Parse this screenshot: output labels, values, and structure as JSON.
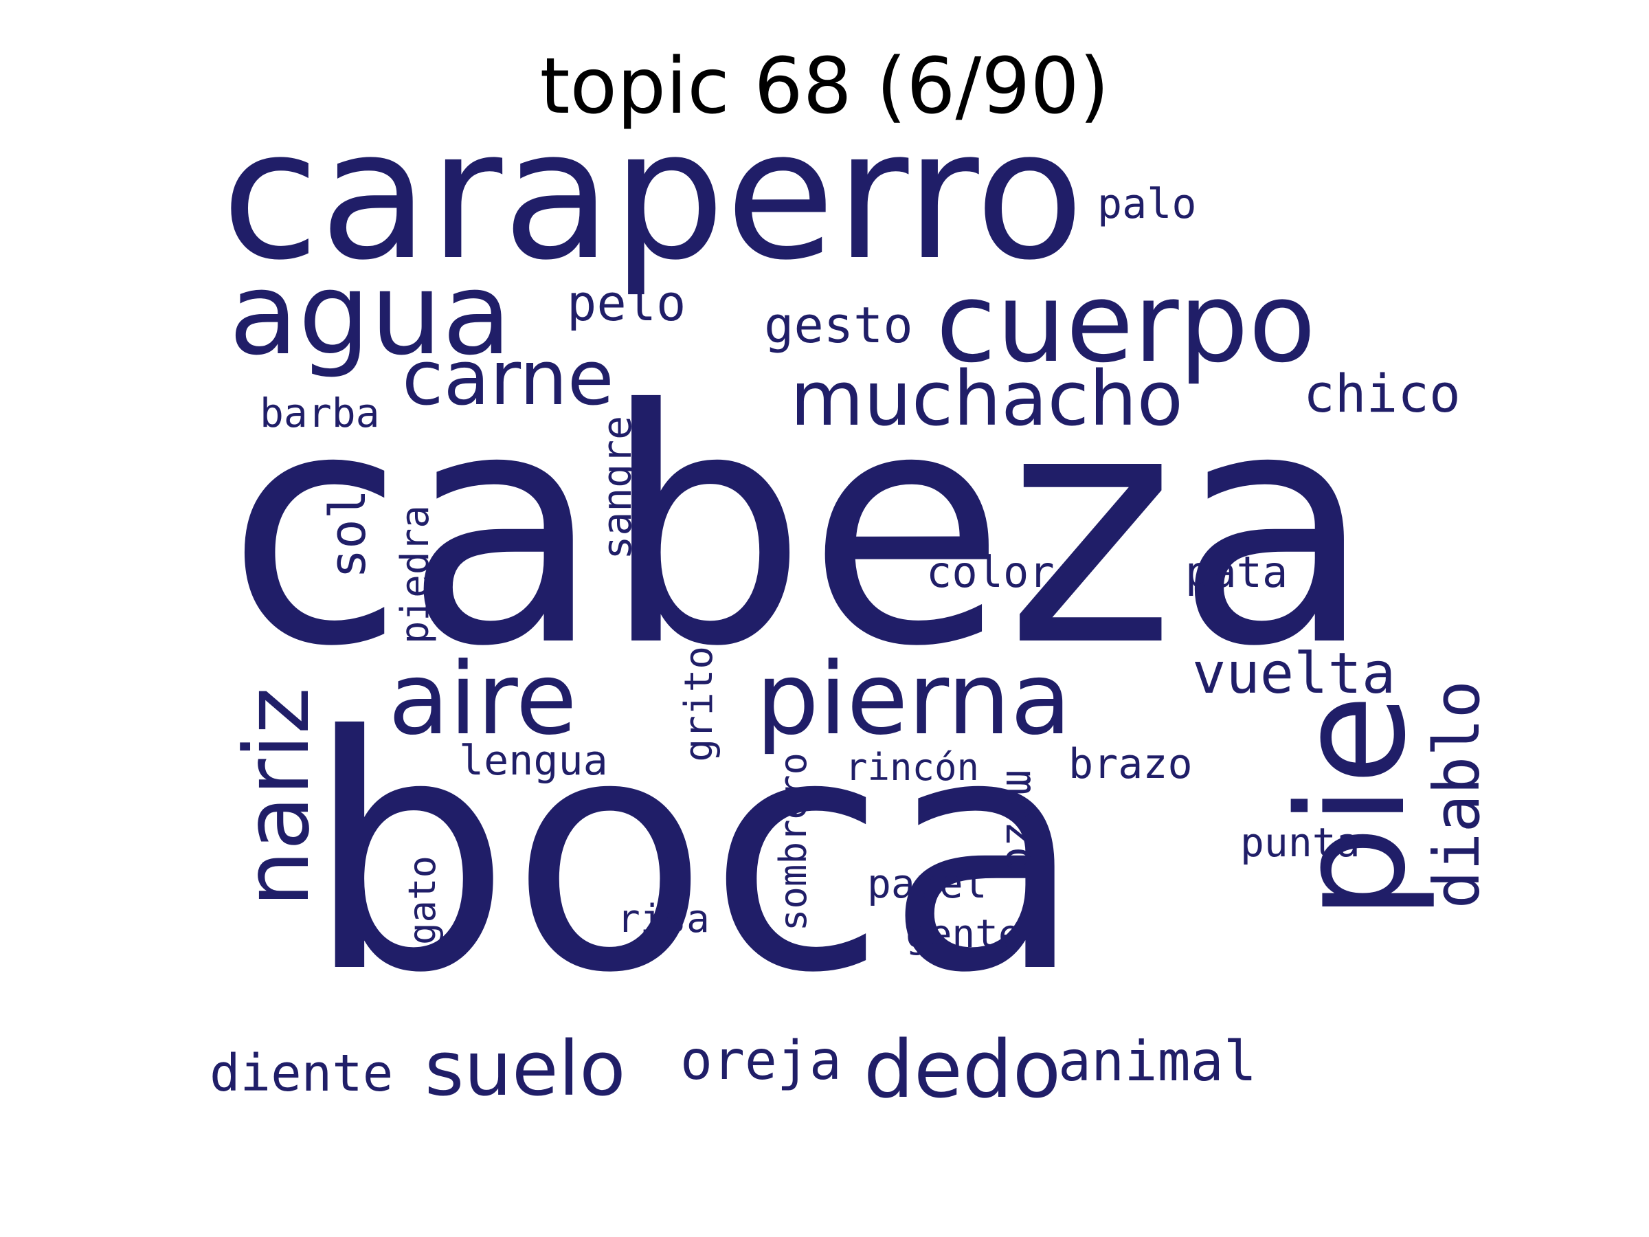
{
  "title": "topic 68 (6/90)",
  "color": "#201e68",
  "words": {
    "cabeza": "cabeza",
    "boca": "boca",
    "caraperro": "caraperro",
    "pie": "pie",
    "cuerpo": "cuerpo",
    "agua": "agua",
    "nariz": "nariz",
    "pierna": "pierna",
    "aire": "aire",
    "muchacho": "muchacho",
    "carne": "carne",
    "dedo": "dedo",
    "suelo": "suelo",
    "diablo": "diablo",
    "vuelta": "vuelta",
    "animal": "animal",
    "oreja": "oreja",
    "chico": "chico",
    "diente": "diente",
    "pelo": "pelo",
    "gesto": "gesto",
    "sol": "sol",
    "palo": "palo",
    "color": "color",
    "pata": "pata",
    "lengua": "lengua",
    "brazo": "brazo",
    "barba": "barba",
    "sangre": "sangre",
    "piedra": "piedra",
    "grito": "grito",
    "mozo": "mozo",
    "rincon": "rincón",
    "punta": "punta",
    "papel": "papel",
    "risa": "risa",
    "gente": "gente",
    "sombrero": "sombrero",
    "gato": "gato"
  }
}
